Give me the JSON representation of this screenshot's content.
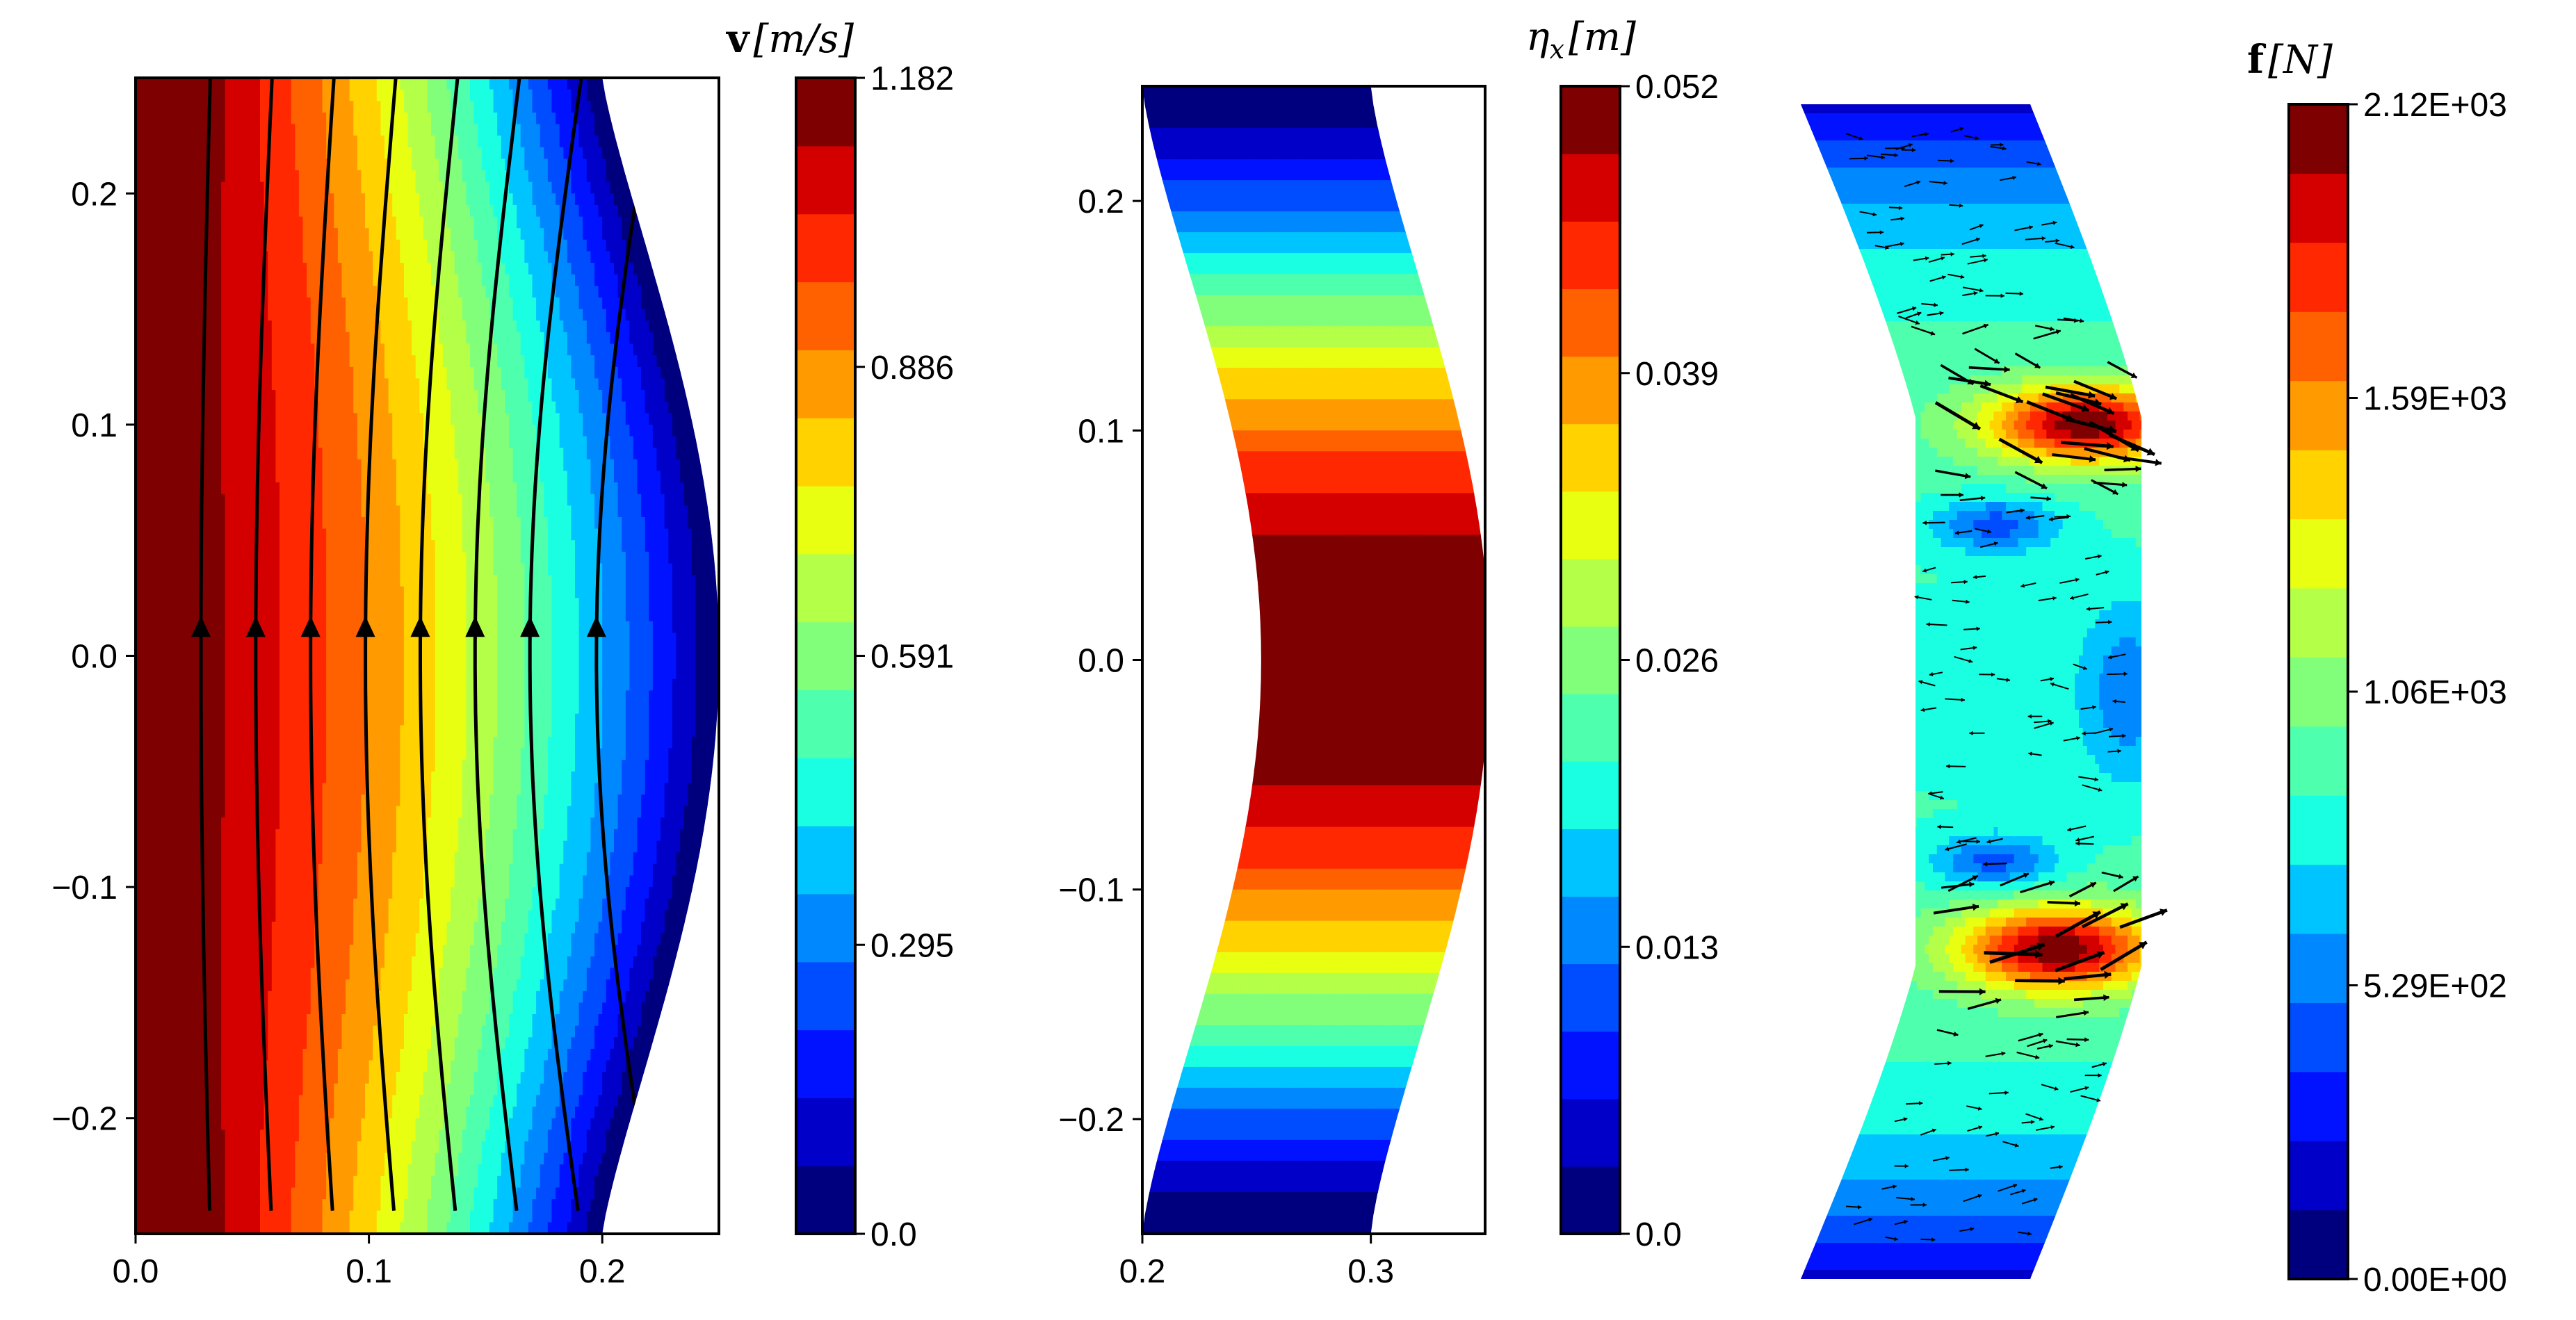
{
  "colormap_jet": [
    "#00007f",
    "#0000c8",
    "#0012ff",
    "#004cff",
    "#0088ff",
    "#00c4ff",
    "#1affe1",
    "#4effad",
    "#82ff7a",
    "#b4ff47",
    "#e8ff12",
    "#ffd200",
    "#ff9a00",
    "#ff6000",
    "#ff2800",
    "#d40000",
    "#7f0000"
  ],
  "chart_data": [
    {
      "type": "contour",
      "name": "velocity",
      "colorbar_label": {
        "bold": "v",
        "units": "[m/s]"
      },
      "colorbar_ticks": [
        "1.182",
        "0.886",
        "0.591",
        "0.295",
        "0.0"
      ],
      "colorbar_range": [
        0.0,
        1.182
      ],
      "x_ticks": [
        "0.0",
        "0.1",
        "0.2"
      ],
      "y_ticks": [
        "0.2",
        "0.1",
        "0.0",
        "−0.1",
        "−0.2"
      ],
      "xlim": [
        0.0,
        0.25
      ],
      "ylim": [
        -0.25,
        0.25
      ],
      "streamline_x": [
        0.03,
        0.055,
        0.08,
        0.105,
        0.13,
        0.155,
        0.18,
        0.21
      ],
      "flow_direction": "upward"
    },
    {
      "type": "contour",
      "name": "displacement",
      "colorbar_label": {
        "symbol": "η",
        "sub": "x",
        "units": "[m]"
      },
      "colorbar_ticks": [
        "0.052",
        "0.039",
        "0.026",
        "0.013",
        "0.0"
      ],
      "colorbar_range": [
        0.0,
        0.052
      ],
      "x_ticks": [
        "0.2",
        "0.3"
      ],
      "y_ticks": [
        "0.2",
        "0.1",
        "0.0",
        "−0.1",
        "−0.2"
      ],
      "xlim": [
        0.2,
        0.35
      ],
      "ylim": [
        -0.25,
        0.25
      ]
    },
    {
      "type": "contour+quiver",
      "name": "force",
      "colorbar_label": {
        "bold": "f",
        "units": "[N]"
      },
      "colorbar_ticks": [
        "2.12E+03",
        "1.59E+03",
        "1.06E+03",
        "5.29E+02",
        "0.00E+00"
      ],
      "colorbar_range": [
        0.0,
        2120.0
      ]
    }
  ]
}
